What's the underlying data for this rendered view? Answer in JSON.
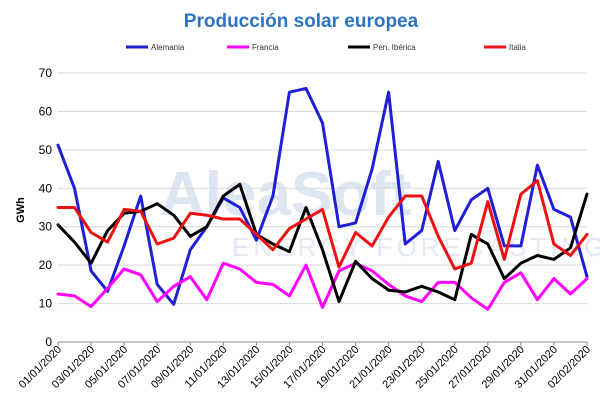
{
  "chart_data": {
    "type": "line",
    "title": "Producción solar europea",
    "ylabel": "GWh",
    "xlabel": "",
    "ylim": [
      0,
      70
    ],
    "yticks": [
      0,
      10,
      20,
      30,
      40,
      50,
      60,
      70
    ],
    "grid": true,
    "legend_position": "top",
    "watermark": {
      "brand": "AleaSoft",
      "subtitle": "ENERGY FORECASTING"
    },
    "x": [
      "01/01/2020",
      "02/01/2020",
      "03/01/2020",
      "04/01/2020",
      "05/01/2020",
      "06/01/2020",
      "07/01/2020",
      "08/01/2020",
      "09/01/2020",
      "10/01/2020",
      "11/01/2020",
      "12/01/2020",
      "13/01/2020",
      "14/01/2020",
      "15/01/2020",
      "16/01/2020",
      "17/01/2020",
      "18/01/2020",
      "19/01/2020",
      "20/01/2020",
      "21/01/2020",
      "22/01/2020",
      "23/01/2020",
      "24/01/2020",
      "25/01/2020",
      "26/01/2020",
      "27/01/2020",
      "28/01/2020",
      "29/01/2020",
      "30/01/2020",
      "31/01/2020",
      "01/02/2020",
      "02/02/2020"
    ],
    "x_tick_labels": [
      "01/01/2020",
      "03/01/2020",
      "05/01/2020",
      "07/01/2020",
      "09/01/2020",
      "11/01/2020",
      "13/01/2020",
      "15/01/2020",
      "17/01/2020",
      "19/01/2020",
      "21/01/2020",
      "23/01/2020",
      "25/01/2020",
      "27/01/2020",
      "29/01/2020",
      "31/01/2020",
      "02/02/2020"
    ],
    "series": [
      {
        "name": "Alemania",
        "color": "#1f1fd6",
        "values": [
          51.2,
          40.0,
          18.5,
          13.2,
          25.0,
          38.0,
          15.0,
          9.8,
          24.0,
          30.0,
          37.5,
          35.0,
          26.5,
          38.0,
          65.0,
          66.0,
          57.0,
          30.0,
          31.0,
          45.0,
          65.0,
          25.5,
          29.0,
          47.0,
          29.0,
          37.0,
          40.0,
          25.0,
          25.0,
          46.0,
          34.5,
          32.5,
          17.0
        ]
      },
      {
        "name": "Francia",
        "color": "#ff00ff",
        "values": [
          12.5,
          12.0,
          9.2,
          14.0,
          19.0,
          17.5,
          10.5,
          14.5,
          17.0,
          11.0,
          20.5,
          19.0,
          15.5,
          15.0,
          12.0,
          20.0,
          9.0,
          18.5,
          20.5,
          18.5,
          15.0,
          12.0,
          10.5,
          15.5,
          15.5,
          11.5,
          8.5,
          15.5,
          18.0,
          11.0,
          16.5,
          12.5,
          16.5
        ]
      },
      {
        "name": "Pen. Ibérica",
        "color": "#000000",
        "values": [
          30.5,
          26.0,
          20.5,
          29.0,
          33.5,
          34.0,
          36.0,
          33.0,
          27.5,
          30.0,
          38.0,
          41.0,
          28.0,
          25.5,
          23.5,
          35.0,
          24.0,
          10.5,
          21.0,
          16.5,
          13.5,
          13.0,
          14.5,
          13.0,
          11.0,
          28.0,
          25.5,
          16.5,
          20.5,
          22.5,
          21.5,
          24.5,
          38.5
        ]
      },
      {
        "name": "Italia",
        "color": "#ee1111",
        "values": [
          35.0,
          35.0,
          28.5,
          26.0,
          34.5,
          34.0,
          25.5,
          27.0,
          33.5,
          33.0,
          32.0,
          32.0,
          28.0,
          24.0,
          29.5,
          32.0,
          34.5,
          19.5,
          28.5,
          25.0,
          32.5,
          38.0,
          38.0,
          27.5,
          19.0,
          20.5,
          36.5,
          21.5,
          38.5,
          42.0,
          25.5,
          22.5,
          28.0
        ]
      }
    ]
  }
}
